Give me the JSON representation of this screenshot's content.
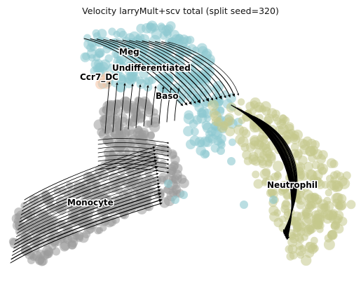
{
  "chart_data": {
    "type": "scatter",
    "title": "Velocity larryMult+scv total (split seed=320)",
    "xlabel": "",
    "ylabel": "",
    "grid": false,
    "legend": "none",
    "overlay": "velocity-streamlines",
    "clusters": [
      {
        "name": "Meg",
        "color": "#8cc8cf"
      },
      {
        "name": "Undifferentiated",
        "color": "#8cc8cf"
      },
      {
        "name": "Ccr7_DC",
        "color": "#f7c4a4"
      },
      {
        "name": "Baso",
        "color": "#8cc8cf"
      },
      {
        "name": "Neutrophil",
        "color": "#c4c88c"
      },
      {
        "name": "Monocyte",
        "color": "#9a9a9a"
      }
    ],
    "streamline_color": "#000000"
  },
  "labels": {
    "meg": "Meg",
    "undifferentiated": "Undifferentiated",
    "ccr7dc": "Ccr7_DC",
    "baso": "Baso",
    "neutrophil": "Neutrophil",
    "monocyte": "Monocyte"
  }
}
